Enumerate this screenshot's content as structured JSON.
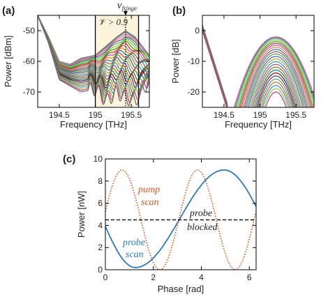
{
  "chart_data": [
    {
      "panel": "(a)",
      "type": "line",
      "xlabel": "Frequency [THz]",
      "ylabel": "Power [dBm]",
      "xlim": [
        194.2,
        195.75
      ],
      "ylim": [
        -75,
        -45
      ],
      "xticks": [
        "194.5",
        "195",
        "195.5"
      ],
      "yticks": [
        "-70",
        "-60",
        "-50"
      ],
      "grid": false,
      "shaded_region": {
        "x": [
          195.0,
          195.6
        ],
        "label": "𝒱 > 0.9",
        "color": "#fbf3dc"
      },
      "vline": {
        "x": 195.42,
        "label": "ν",
        "sub": "fringe"
      },
      "series_count": 28,
      "description_points": {
        "x": [
          194.2,
          194.35,
          194.5,
          194.65,
          194.8,
          195.0,
          195.15,
          195.3,
          195.42,
          195.55,
          195.75
        ],
        "upper_envelope": [
          -45,
          -52,
          -60,
          -61,
          -59,
          -58,
          -55,
          -52,
          -50,
          -52,
          -58
        ],
        "lower_envelope": [
          -45,
          -54,
          -66,
          -68,
          -70,
          -69,
          -73,
          -70,
          -72,
          -73,
          -66
        ]
      }
    },
    {
      "panel": "(b)",
      "type": "line",
      "xlabel": "Frequency [THz]",
      "ylabel": "Power [dB]",
      "xlim": [
        194.2,
        195.75
      ],
      "ylim": [
        -25,
        5
      ],
      "xticks": [
        "194.5",
        "195",
        "195.5"
      ],
      "yticks": [
        "-20",
        "-10",
        "0"
      ],
      "grid": false,
      "series_count": 24,
      "description_points": {
        "x": [
          194.2,
          194.35,
          194.5,
          194.6,
          194.8,
          195.0,
          195.2,
          195.4,
          195.6,
          195.75
        ],
        "upper_envelope": [
          0,
          -12,
          -22,
          -24,
          -12,
          -4,
          -2,
          -5,
          -13,
          -17
        ],
        "lower_envelope": [
          3,
          -15,
          -25,
          -25,
          -25,
          -25,
          -25,
          -25,
          -25,
          -25
        ]
      }
    },
    {
      "panel": "(c)",
      "type": "line",
      "xlabel": "Phase [rad]",
      "ylabel": "Power [nW]",
      "xlim": [
        0,
        6.2832
      ],
      "ylim": [
        0,
        10
      ],
      "xticks": [
        "0",
        "2",
        "4",
        "6"
      ],
      "yticks": [
        "0",
        "2",
        "4",
        "6",
        "8",
        "10"
      ],
      "grid": false,
      "series": [
        {
          "name": "probe scan",
          "color": "#2b7bba",
          "style": "solid",
          "amplitude": 4.4,
          "offset": 4.6,
          "peak_phase": 4.95
        },
        {
          "name": "pump scan",
          "color": "#d9541e",
          "style": "dotted",
          "amplitude": 4.5,
          "offset": 4.5,
          "peak_phase": 0.7,
          "frequency": 2
        },
        {
          "name": "probe blocked",
          "color": "#000000",
          "style": "dashed",
          "value": 4.5
        }
      ],
      "annotations": {
        "pump_1": "pump",
        "pump_2": "scan",
        "probe_1": "probe",
        "probe_2": "scan",
        "blocked_1": "probe",
        "blocked_2": "blocked"
      }
    }
  ]
}
